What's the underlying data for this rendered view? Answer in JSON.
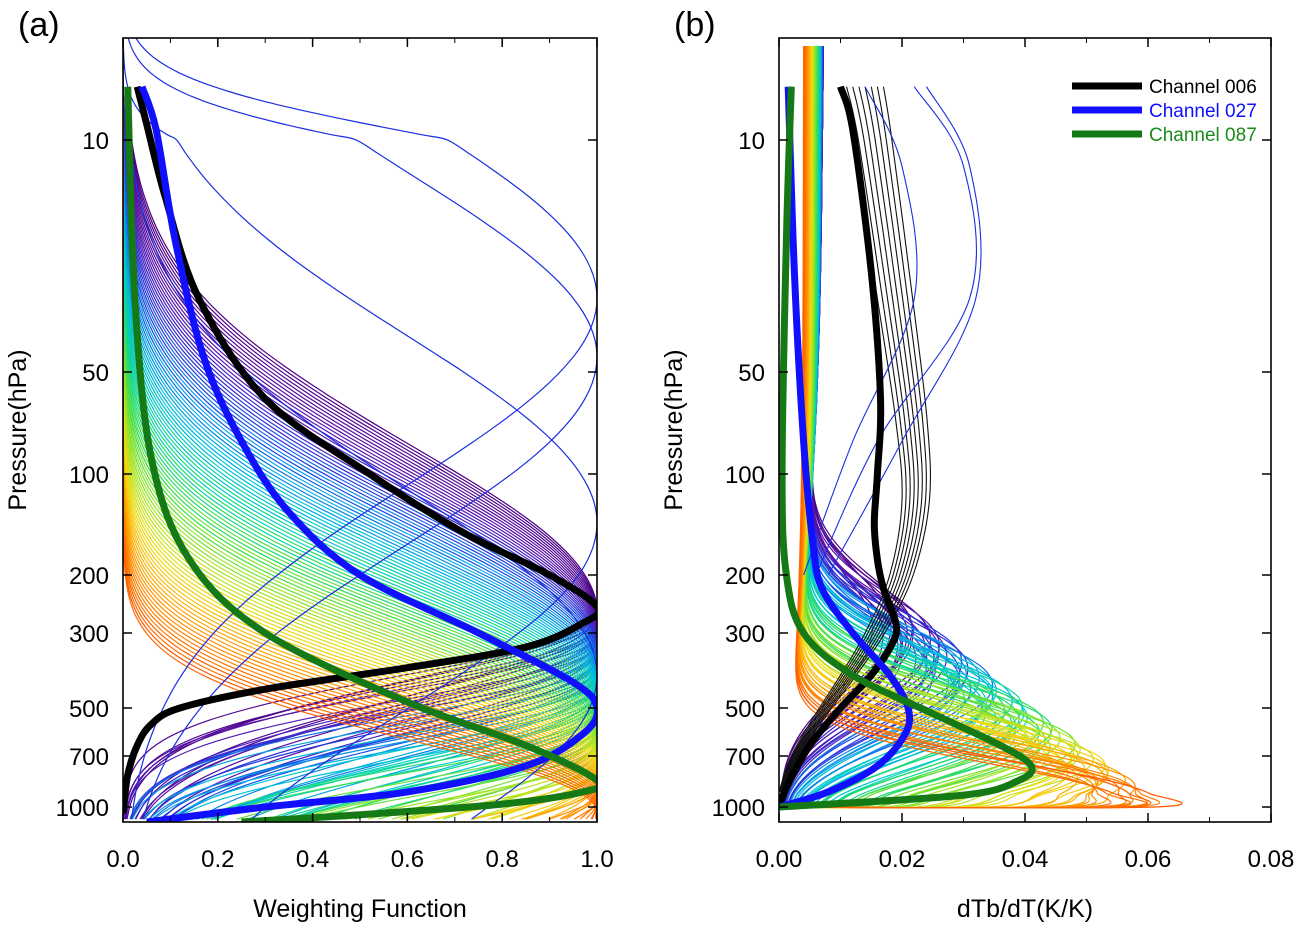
{
  "chart_data": [
    {
      "type": "line",
      "panel_label": "(a)",
      "xlabel": "Weighting Function",
      "ylabel": "Pressure(hPa)",
      "xlim": [
        0.0,
        1.0
      ],
      "ylim": [
        1.0,
        1100
      ],
      "y_scale": "log",
      "y_reversed": true,
      "x_ticks": [
        0.0,
        0.2,
        0.4,
        0.6,
        0.8,
        1.0
      ],
      "x_tick_labels": [
        "0.0",
        "0.2",
        "0.4",
        "0.6",
        "0.8",
        "1.0"
      ],
      "y_ticks": [
        10,
        50,
        100,
        200,
        300,
        500,
        700,
        1000
      ],
      "y_tick_labels": [
        "10",
        "50",
        "100",
        "200",
        "300",
        "500",
        "700",
        "1000"
      ],
      "highlighted_series": [
        {
          "name": "Channel 006",
          "color": "#000000",
          "peak_pressure": 250,
          "x": [
            0.0,
            0.01,
            0.03,
            0.06,
            0.12,
            0.3,
            0.6,
            0.85,
            0.97,
            1.0,
            0.9,
            0.72,
            0.52,
            0.3,
            0.16,
            0.09,
            0.05,
            0.03
          ],
          "y": [
            1040,
            800,
            650,
            560,
            500,
            440,
            380,
            330,
            280,
            250,
            200,
            150,
            100,
            60,
            30,
            15,
            7,
            3
          ]
        },
        {
          "name": "Channel 027",
          "color": "#1010ff",
          "peak_pressure": 500,
          "x": [
            0.05,
            0.3,
            0.6,
            0.85,
            0.97,
            1.0,
            0.95,
            0.75,
            0.5,
            0.35,
            0.25,
            0.17,
            0.11,
            0.07,
            0.04
          ],
          "y": [
            1100,
            1000,
            900,
            750,
            600,
            500,
            420,
            300,
            200,
            130,
            80,
            45,
            20,
            8,
            3
          ]
        },
        {
          "name": "Channel 087",
          "color": "#157a15",
          "peak_pressure": 850,
          "x": [
            0.25,
            0.5,
            0.8,
            0.97,
            1.0,
            0.85,
            0.6,
            0.3,
            0.14,
            0.06,
            0.025,
            0.01
          ],
          "y": [
            1100,
            1050,
            980,
            900,
            830,
            650,
            480,
            300,
            180,
            90,
            30,
            3
          ]
        }
      ]
    },
    {
      "type": "line",
      "panel_label": "(b)",
      "xlabel": "dTb/dT(K/K)",
      "ylabel": "Pressure(hPa)",
      "xlim": [
        0.0,
        0.08
      ],
      "ylim": [
        1.0,
        1100
      ],
      "y_scale": "log",
      "y_reversed": true,
      "x_ticks": [
        0.0,
        0.02,
        0.04,
        0.06,
        0.08
      ],
      "x_tick_labels": [
        "0.00",
        "0.02",
        "0.04",
        "0.06",
        "0.08"
      ],
      "y_ticks": [
        10,
        50,
        100,
        200,
        300,
        500,
        700,
        1000
      ],
      "y_tick_labels": [
        "10",
        "50",
        "100",
        "200",
        "300",
        "500",
        "700",
        "1000"
      ],
      "legend": {
        "position": "top-right",
        "entries": [
          "Channel 006",
          "Channel 027",
          "Channel 087"
        ]
      },
      "highlighted_series": [
        {
          "name": "Channel 006",
          "color": "#000000",
          "max_value": 0.019,
          "x": [
            0.0,
            0.0015,
            0.005,
            0.01,
            0.015,
            0.0185,
            0.019,
            0.017,
            0.016,
            0.0155,
            0.016,
            0.0165,
            0.015,
            0.012,
            0.01
          ],
          "y": [
            1000,
            850,
            650,
            500,
            400,
            320,
            280,
            220,
            180,
            140,
            100,
            60,
            25,
            8,
            3
          ]
        },
        {
          "name": "Channel 027",
          "color": "#1010ff",
          "max_value": 0.021,
          "x": [
            0.0,
            0.008,
            0.016,
            0.0205,
            0.021,
            0.018,
            0.012,
            0.007,
            0.0055,
            0.004,
            0.0025,
            0.0015
          ],
          "y": [
            1000,
            900,
            750,
            600,
            500,
            400,
            300,
            220,
            160,
            80,
            25,
            3
          ]
        },
        {
          "name": "Channel 087",
          "color": "#157a15",
          "max_value": 0.041,
          "x": [
            0.0,
            0.03,
            0.039,
            0.041,
            0.036,
            0.025,
            0.012,
            0.004,
            0.0012,
            0.0005,
            0.0012,
            0.002
          ],
          "y": [
            1000,
            920,
            830,
            750,
            650,
            520,
            400,
            300,
            200,
            100,
            20,
            3
          ]
        }
      ]
    }
  ]
}
